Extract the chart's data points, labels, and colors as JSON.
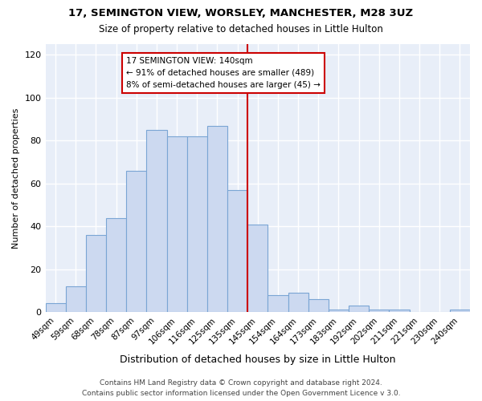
{
  "title1": "17, SEMINGTON VIEW, WORSLEY, MANCHESTER, M28 3UZ",
  "title2": "Size of property relative to detached houses in Little Hulton",
  "xlabel": "Distribution of detached houses by size in Little Hulton",
  "ylabel": "Number of detached properties",
  "categories": [
    "49sqm",
    "59sqm",
    "68sqm",
    "78sqm",
    "87sqm",
    "97sqm",
    "106sqm",
    "116sqm",
    "125sqm",
    "135sqm",
    "145sqm",
    "154sqm",
    "164sqm",
    "173sqm",
    "183sqm",
    "192sqm",
    "202sqm",
    "211sqm",
    "221sqm",
    "230sqm",
    "240sqm"
  ],
  "values": [
    4,
    12,
    36,
    44,
    66,
    85,
    82,
    82,
    87,
    57,
    41,
    8,
    9,
    6,
    1,
    3,
    1,
    1,
    0,
    0,
    1
  ],
  "bar_color": "#ccd9f0",
  "bar_edge_color": "#7aa5d4",
  "ref_line_label": "17 SEMINGTON VIEW: 140sqm",
  "annotation_line1": "← 91% of detached houses are smaller (489)",
  "annotation_line2": "8% of semi-detached houses are larger (45) →",
  "ref_color": "#cc0000",
  "bg_color": "#ffffff",
  "plot_bg_color": "#e8eef8",
  "grid_color": "#ffffff",
  "footer": "Contains HM Land Registry data © Crown copyright and database right 2024.\nContains public sector information licensed under the Open Government Licence v 3.0.",
  "ylim": [
    0,
    125
  ],
  "yticks": [
    0,
    20,
    40,
    60,
    80,
    100,
    120
  ],
  "ref_bin_index": 10
}
